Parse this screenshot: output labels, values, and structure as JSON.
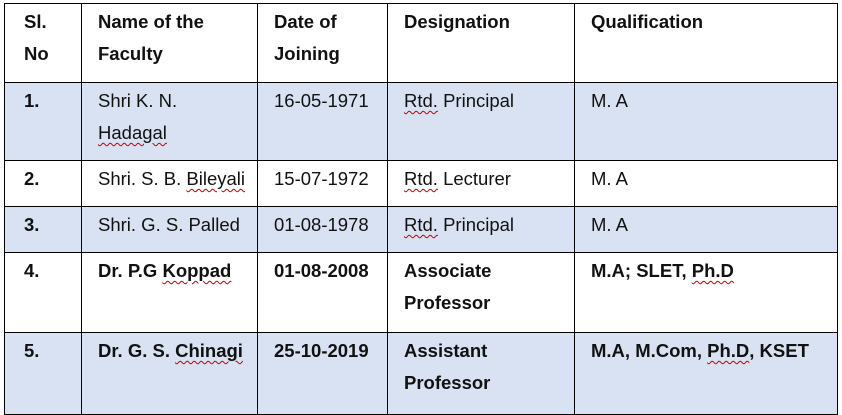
{
  "headers": [
    "Sl. No",
    "Name of the Faculty",
    "Date of Joining",
    "Designation",
    "Qualification"
  ],
  "rows": [
    {
      "no": "1.",
      "name": "Shri K. N. Hadagal",
      "doj": "16-05-1971",
      "designation": "Rtd.  Principal",
      "qualification": "M. A"
    },
    {
      "no": "2.",
      "name": "Shri. S. B. Bileyali",
      "doj": "15-07-1972",
      "designation": "Rtd. Lecturer",
      "qualification": "M. A"
    },
    {
      "no": "3.",
      "name": "Shri. G. S. Palled",
      "doj": "01-08-1978",
      "designation": "Rtd.  Principal",
      "qualification": "M. A"
    },
    {
      "no": "4.",
      "name": "Dr. P.G Koppad",
      "doj": "01-08-2008",
      "designation": "Associate Professor",
      "qualification": "M.A; SLET, Ph.D"
    },
    {
      "no": "5.",
      "name": "Dr. G. S. Chinagi",
      "doj": "25-10-2019",
      "designation": "Assistant Professor",
      "qualification": "M.A, M.Com, Ph.D, KSET"
    }
  ]
}
